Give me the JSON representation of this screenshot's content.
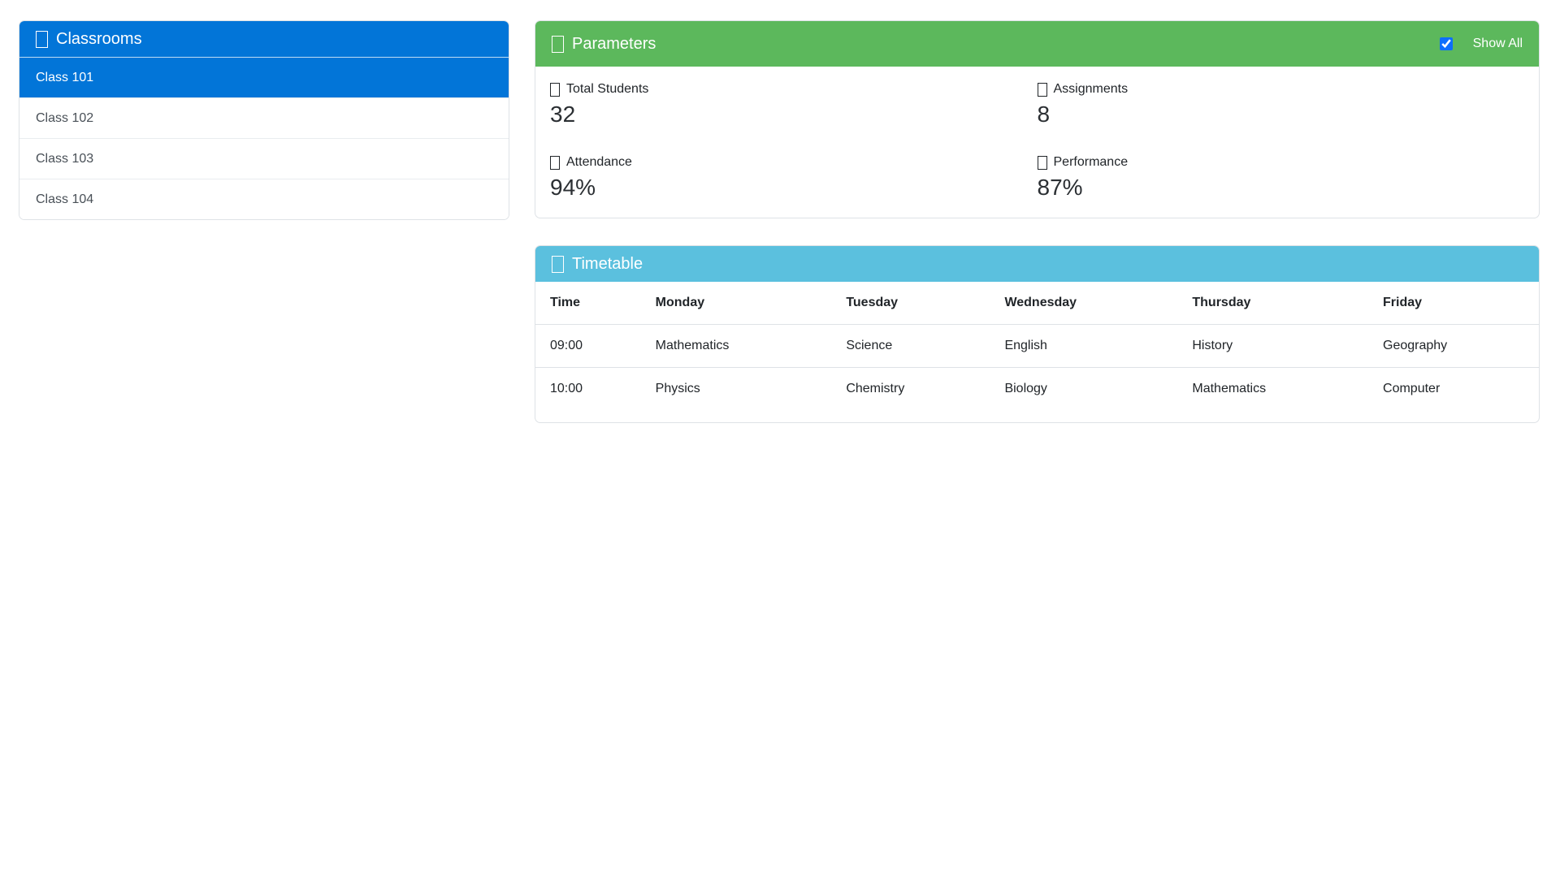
{
  "colors": {
    "header_blue": "#0275d8",
    "header_green": "#5cb85c",
    "header_cyan": "#5bc0de",
    "selected_item_blue": "#0275d8",
    "checkbox_accent": "#0d6efd",
    "panel_border": "#dee2e6"
  },
  "classrooms": {
    "title": "Classrooms",
    "icon": "missing-glyph-box",
    "items": [
      {
        "label": "Class 101",
        "selected": true
      },
      {
        "label": "Class 102",
        "selected": false
      },
      {
        "label": "Class 103",
        "selected": false
      },
      {
        "label": "Class 104",
        "selected": false
      }
    ]
  },
  "parameters": {
    "title": "Parameters",
    "icon": "missing-glyph-box",
    "show_all_label": "Show All",
    "show_all_checked": true,
    "stats": [
      {
        "icon": "missing-glyph-box",
        "label": "Total Students",
        "value": "32"
      },
      {
        "icon": "missing-glyph-box",
        "label": "Assignments",
        "value": "8"
      },
      {
        "icon": "missing-glyph-box",
        "label": "Attendance",
        "value": "94%"
      },
      {
        "icon": "missing-glyph-box",
        "label": "Performance",
        "value": "87%"
      }
    ]
  },
  "timetable": {
    "title": "Timetable",
    "icon": "missing-glyph-box",
    "columns": [
      "Time",
      "Monday",
      "Tuesday",
      "Wednesday",
      "Thursday",
      "Friday"
    ],
    "rows": [
      [
        "09:00",
        "Mathematics",
        "Science",
        "English",
        "History",
        "Geography"
      ],
      [
        "10:00",
        "Physics",
        "Chemistry",
        "Biology",
        "Mathematics",
        "Computer"
      ]
    ]
  }
}
